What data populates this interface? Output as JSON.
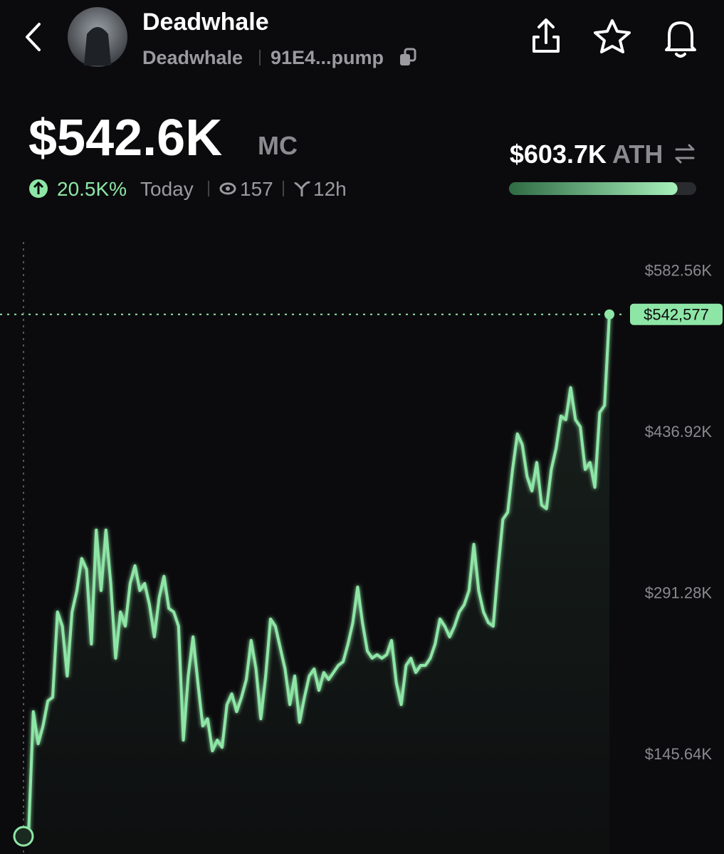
{
  "header": {
    "title": "Deadwhale",
    "subtitle": "Deadwhale",
    "address": "91E4...pump"
  },
  "stats": {
    "market_cap": "$542.6K",
    "market_cap_unit": "MC",
    "change": "20.5K%",
    "change_period": "Today",
    "views": "157",
    "age": "12h",
    "ath": "$603.7K",
    "ath_label": "ATH",
    "ath_progress": 90
  },
  "chart_data": {
    "type": "line",
    "color": "#8ee6a6",
    "values": [
      71000,
      183600,
      154600,
      170700,
      193300,
      196500,
      273700,
      260800,
      215800,
      273700,
      293000,
      322000,
      312300,
      244700,
      347700,
      293000,
      347700,
      299400,
      231900,
      273700,
      260800,
      299400,
      315500,
      293000,
      299400,
      280100,
      251200,
      286600,
      305900,
      276900,
      273700,
      260800,
      157900,
      215800,
      251200,
      209300,
      170700,
      177200,
      148200,
      157900,
      151400,
      190000,
      199700,
      183600,
      196500,
      212600,
      248000,
      222200,
      177200,
      215800,
      267300,
      260800,
      241500,
      222200,
      190000,
      215800,
      174000,
      196500,
      215800,
      222200,
      202900,
      219000,
      212600,
      219000,
      225400,
      228700,
      244700,
      264000,
      296200,
      264000,
      238300,
      231900,
      235100,
      231900,
      235100,
      248000,
      209300,
      190000,
      225400,
      231900,
      219000,
      225400,
      225400,
      231900,
      244700,
      267300,
      260800,
      251200,
      260800,
      273700,
      280100,
      293000,
      334800,
      293000,
      273700,
      264000,
      260800,
      312300,
      357400,
      363800,
      402400,
      434600,
      424900,
      396000,
      383100,
      408800,
      370200,
      367000,
      402400,
      421700,
      450700,
      447400,
      476400,
      447400,
      441000,
      402400,
      408800,
      386300,
      453900,
      460300,
      542577
    ],
    "ylim": [
      55000,
      608000
    ],
    "yticks": [
      {
        "value": 145640,
        "label": "$145.64K"
      },
      {
        "value": 291280,
        "label": "$291.28K"
      },
      {
        "value": 436920,
        "label": "$436.92K"
      },
      {
        "value": 582560,
        "label": "$582.56K"
      }
    ],
    "last_price": {
      "value": 542577,
      "label": "$542,577"
    }
  }
}
